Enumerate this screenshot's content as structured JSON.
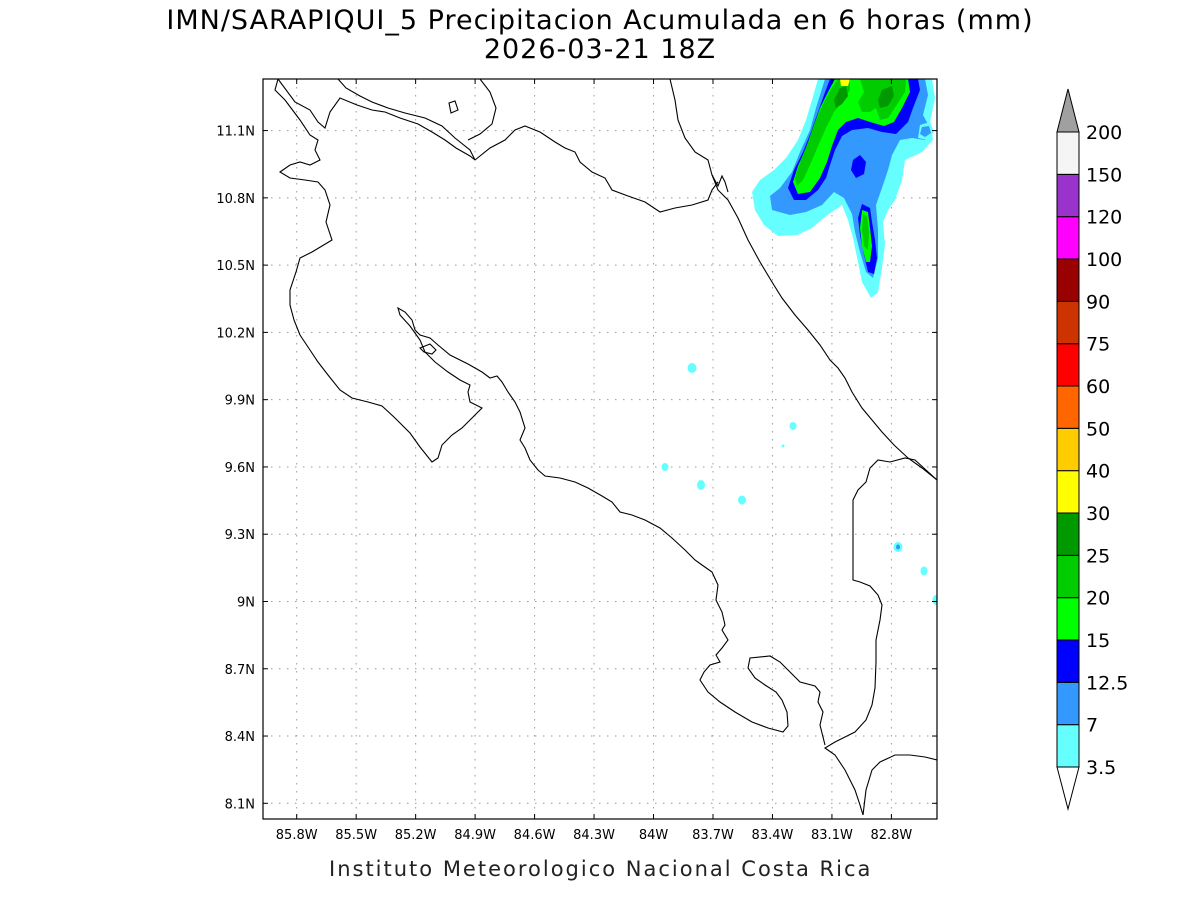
{
  "title": {
    "line1": "IMN/SARAPIQUI_5 Precipitacion Acumulada en 6 horas (mm)",
    "line2": "2026-03-21 18Z"
  },
  "footer": "Instituto Meteorologico Nacional Costa Rica",
  "map": {
    "lon_range_west": [
      85.97,
      82.57
    ],
    "lat_range_north": [
      8.03,
      11.33
    ],
    "x_ticks": [
      {
        "value": 85.8,
        "label": "85.8W"
      },
      {
        "value": 85.5,
        "label": "85.5W"
      },
      {
        "value": 85.2,
        "label": "85.2W"
      },
      {
        "value": 84.9,
        "label": "84.9W"
      },
      {
        "value": 84.6,
        "label": "84.6W"
      },
      {
        "value": 84.3,
        "label": "84.3W"
      },
      {
        "value": 84.0,
        "label": "84W"
      },
      {
        "value": 83.7,
        "label": "83.7W"
      },
      {
        "value": 83.4,
        "label": "83.4W"
      },
      {
        "value": 83.1,
        "label": "83.1W"
      },
      {
        "value": 82.8,
        "label": "82.8W"
      }
    ],
    "y_ticks": [
      {
        "value": 11.1,
        "label": "11.1N"
      },
      {
        "value": 10.8,
        "label": "10.8N"
      },
      {
        "value": 10.5,
        "label": "10.5N"
      },
      {
        "value": 10.2,
        "label": "10.2N"
      },
      {
        "value": 9.9,
        "label": "9.9N"
      },
      {
        "value": 9.6,
        "label": "9.6N"
      },
      {
        "value": 9.3,
        "label": "9.3N"
      },
      {
        "value": 9.0,
        "label": "9N"
      },
      {
        "value": 8.7,
        "label": "8.7N"
      },
      {
        "value": 8.4,
        "label": "8.4N"
      },
      {
        "value": 8.1,
        "label": "8.1N"
      }
    ],
    "grid": true
  },
  "colorbar": {
    "bins": [
      {
        "label": "3.5",
        "color": "#66FFFF"
      },
      {
        "label": "7",
        "color": "#3399FF"
      },
      {
        "label": "12.5",
        "color": "#0000FF"
      },
      {
        "label": "15",
        "color": "#00FF00"
      },
      {
        "label": "20",
        "color": "#00CC00"
      },
      {
        "label": "25",
        "color": "#009900"
      },
      {
        "label": "30",
        "color": "#FFFF00"
      },
      {
        "label": "40",
        "color": "#FFCC00"
      },
      {
        "label": "50",
        "color": "#FF6600"
      },
      {
        "label": "60",
        "color": "#FF0000"
      },
      {
        "label": "75",
        "color": "#CC3300"
      },
      {
        "label": "90",
        "color": "#990000"
      },
      {
        "label": "100",
        "color": "#FF00FF"
      },
      {
        "label": "120",
        "color": "#9933CC"
      },
      {
        "label": "150",
        "color": "#F5F5F5"
      },
      {
        "label": "200",
        "color": "#A0A0A0"
      }
    ],
    "under_color": "#FFFFFF"
  }
}
